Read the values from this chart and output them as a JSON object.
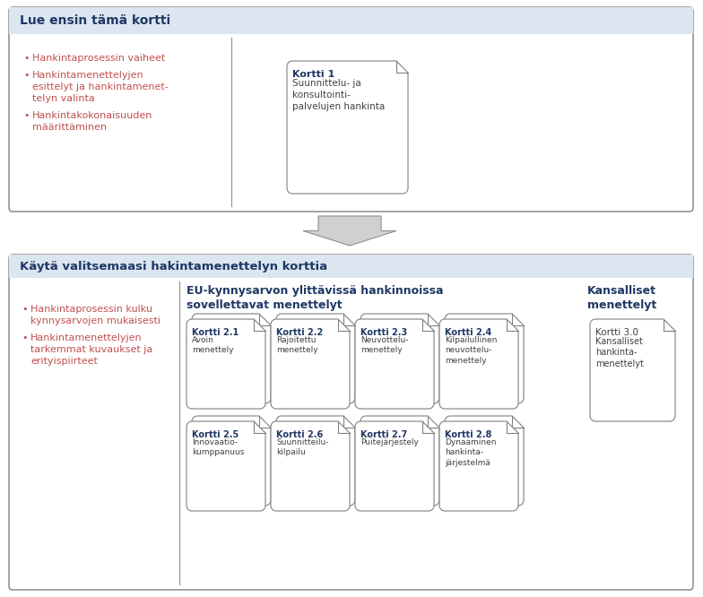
{
  "top_box": {
    "title": "Lue ensin tämä kortti",
    "title_bg": "#dce6f1",
    "body_bg": "#ffffff",
    "border_color": "#808080",
    "bullets": [
      "Hankintaprosessin vaiheet",
      "Hankintamenettelyjen\nesittelyt ja hankintamenet-\ntelyn valinta",
      "Hankintakokonaisuuden\nmäärittäminen"
    ],
    "bullet_color": "#c0504d",
    "card": {
      "number": "Kortti 1",
      "text": "Suunnittelu- ja\nkonsultointi-\npalvelujen hankinta"
    }
  },
  "bottom_box": {
    "title": "Käytä valitsemaasi hakintamenettelyn korttia",
    "title_bg": "#dce6f1",
    "body_bg": "#ffffff",
    "border_color": "#808080",
    "bullets": [
      "Hankintaprosessin kulku\nkynnysarvojen mukaisesti",
      "Hankintamenettelyjen\ntarkemmat kuvaukset ja\nerityispiirteet"
    ],
    "bullet_color": "#c0504d",
    "eu_header": "EU-kynnysarvon ylittävissä hankinnoissa\nsovellettavat menettelyt",
    "nat_header": "Kansalliset\nmenettelyt",
    "cards_top": [
      {
        "number": "Kortti 2.1",
        "text": "Avoin\nmenettely",
        "bold": true
      },
      {
        "number": "Kortti 2.2",
        "text": "Rajoitettu\nmenettely",
        "bold": true
      },
      {
        "number": "Kortti 2.3",
        "text": "Neuvottelu-\nmenettely",
        "bold": true
      },
      {
        "number": "Kortti 2.4",
        "text": "Kilpailullinen\nneuvottelu-\nmenettely",
        "bold": true
      }
    ],
    "cards_bottom": [
      {
        "number": "Kortti 2.5",
        "text": "Innovaatio-\nkumppanuus",
        "bold": true
      },
      {
        "number": "Kortti 2.6",
        "text": "Suunnitteilu-\nkilpailu",
        "bold": true
      },
      {
        "number": "Kortti 2.7",
        "text": "Puitejärjestely",
        "bold": true
      },
      {
        "number": "Kortti 2.8",
        "text": "Dynaaminen\nhankinta-\njärjestelmä",
        "bold": true
      }
    ],
    "card_nat": {
      "number": "Kortti 3.0",
      "text": "Kansalliset\nhankinta-\nmenettelyt",
      "bold": false
    }
  },
  "text_color_dark": "#1f3864",
  "text_color_body": "#404040",
  "card_border": "#808080",
  "arrow_fill": "#d0d0d0",
  "arrow_edge": "#909090"
}
